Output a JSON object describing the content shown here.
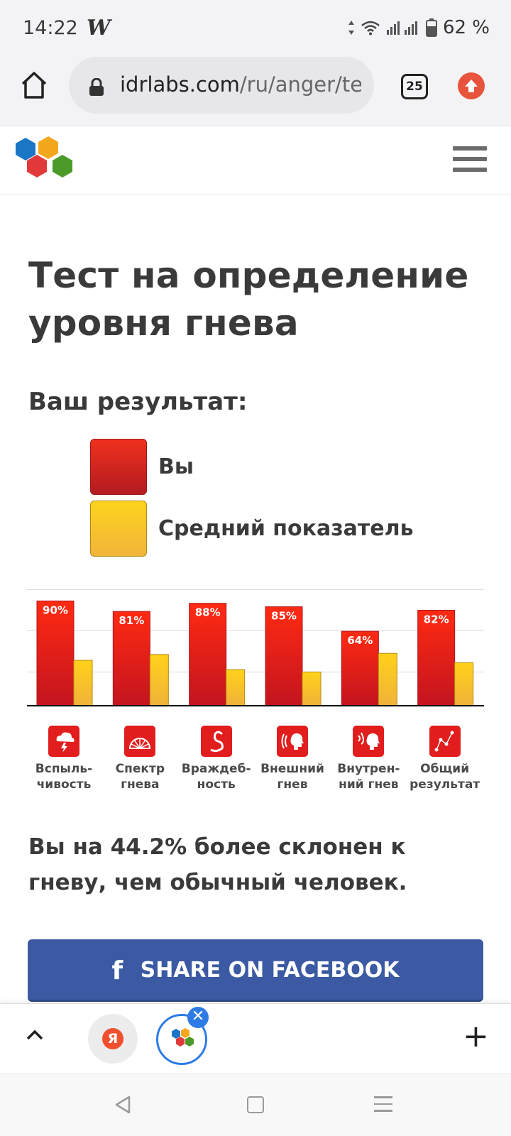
{
  "status_bar": {
    "time": "14:22",
    "app_icon": "W",
    "battery": "62 %"
  },
  "browser": {
    "url_host": "idrlabs.com",
    "url_path": "/ru/anger/te",
    "tab_count": "25",
    "accent_color": "#e8533b"
  },
  "page": {
    "title": "Тест на определение уровня гнева",
    "result_label": "Ваш результат:",
    "legend": [
      {
        "label": "Вы",
        "color": "#d7261f"
      },
      {
        "label": "Средний показатель",
        "color": "#f6c22a"
      }
    ],
    "summary": "Вы на 44.2% более склонен к гневу, чем обычный человек.",
    "share_button": "SHARE ON FACEBOOK",
    "share_icon": "f"
  },
  "chart_data": {
    "type": "bar",
    "categories": [
      "Вспыль- чивость",
      "Спектр гнева",
      "Враждеб- ность",
      "Внешний гнев",
      "Внутрен- ний гнев",
      "Общий результат"
    ],
    "category_lines": [
      [
        "Вспыль-",
        "чивость"
      ],
      [
        "Спектр",
        "гнева"
      ],
      [
        "Враждеб-",
        "ность"
      ],
      [
        "Внешний",
        "гнев"
      ],
      [
        "Внутрен-",
        "ний гнев"
      ],
      [
        "Общий",
        "результат"
      ]
    ],
    "category_icons": [
      "storm-icon",
      "fan-icon",
      "cobra-icon",
      "shouting-head-icon",
      "inner-voice-head-icon",
      "graph-icon"
    ],
    "series": [
      {
        "name": "Вы",
        "values": [
          90,
          81,
          88,
          85,
          64,
          82
        ],
        "labels": [
          "90%",
          "81%",
          "88%",
          "85%",
          "64%",
          "82%"
        ],
        "color": "#e8201a"
      },
      {
        "name": "Средний показатель",
        "values": [
          39,
          44,
          31,
          29,
          45,
          37
        ],
        "color": "#f7c21e"
      }
    ],
    "ylim": [
      0,
      100
    ],
    "grid": true,
    "legend": "top-left"
  },
  "bottom_bar": {
    "yandex_label": "Я",
    "close_symbol": "✕",
    "plus_symbol": "+"
  }
}
